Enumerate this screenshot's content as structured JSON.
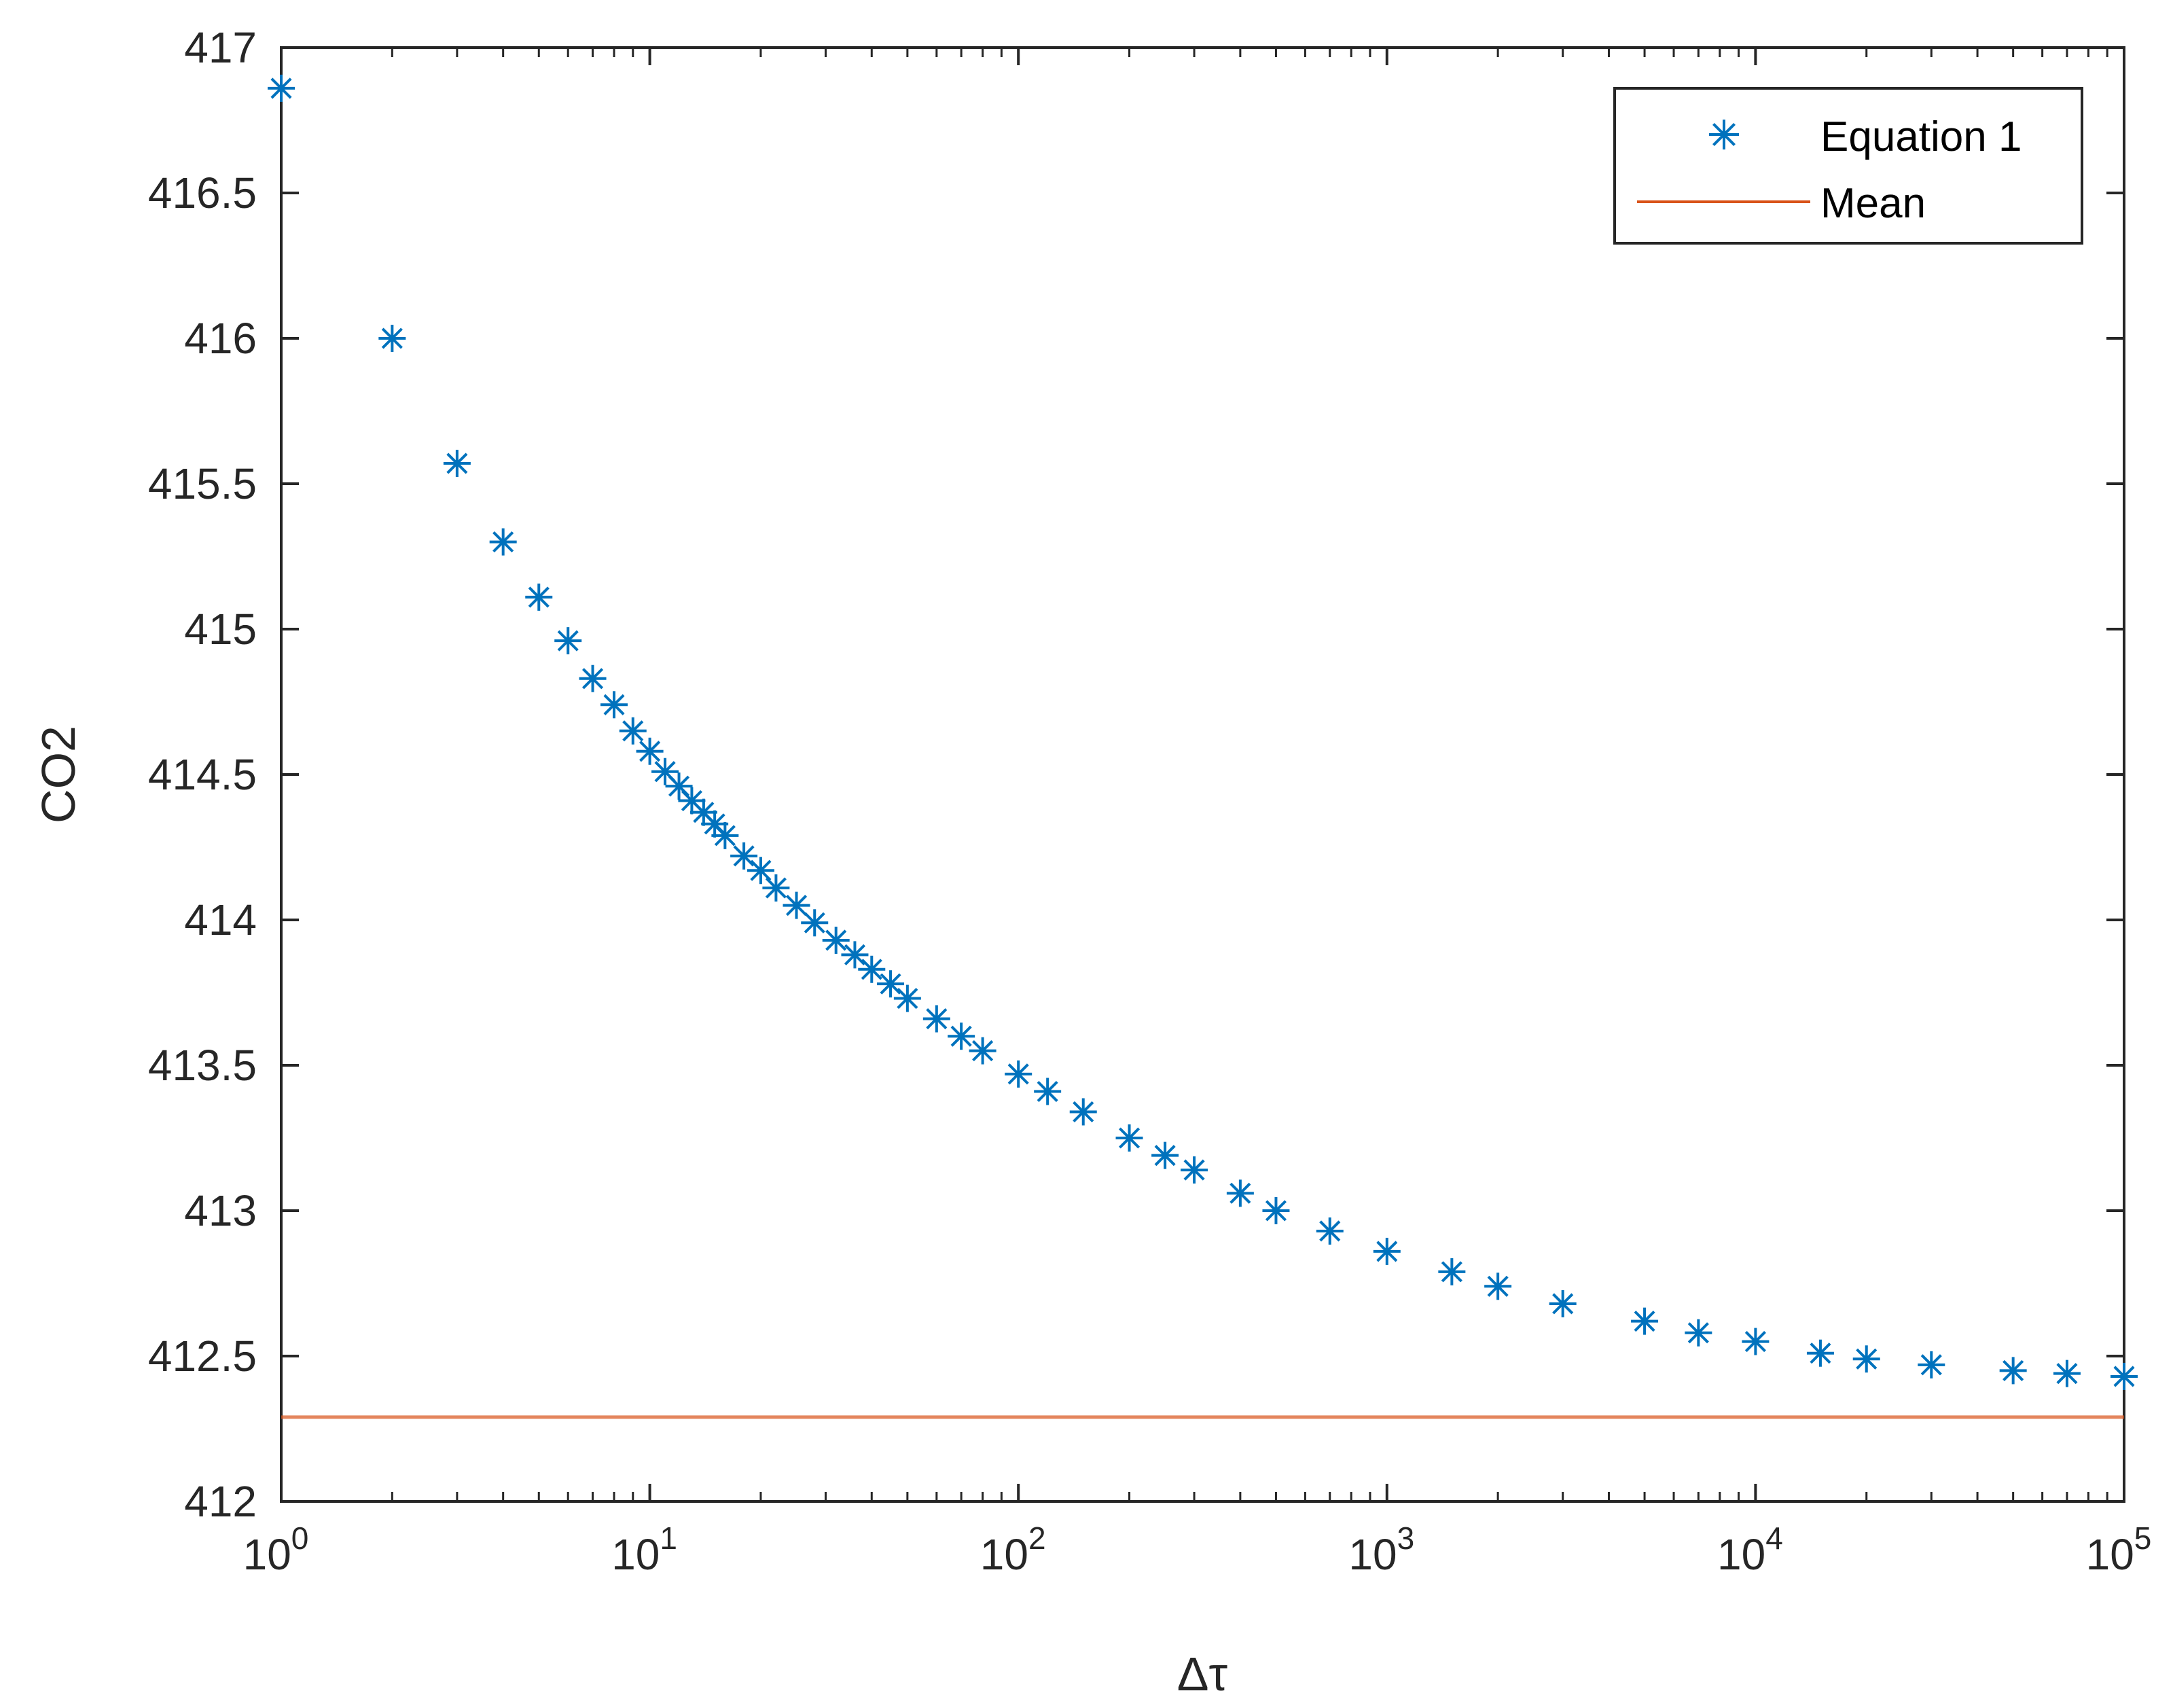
{
  "chart_data": {
    "type": "scatter",
    "title": "",
    "xlabel": "Δτ",
    "ylabel": "CO2",
    "xscale": "log",
    "xlim": [
      1,
      100000
    ],
    "ylim": [
      412,
      417
    ],
    "xticks": [
      {
        "value": 1,
        "base": "10",
        "exp": "0"
      },
      {
        "value": 10,
        "base": "10",
        "exp": "1"
      },
      {
        "value": 100,
        "base": "10",
        "exp": "2"
      },
      {
        "value": 1000,
        "base": "10",
        "exp": "3"
      },
      {
        "value": 10000,
        "base": "10",
        "exp": "4"
      },
      {
        "value": 100000,
        "base": "10",
        "exp": "5"
      }
    ],
    "yticks": [
      {
        "value": 412,
        "label": "412"
      },
      {
        "value": 412.5,
        "label": "412.5"
      },
      {
        "value": 413,
        "label": "413"
      },
      {
        "value": 413.5,
        "label": "413.5"
      },
      {
        "value": 414,
        "label": "414"
      },
      {
        "value": 414.5,
        "label": "414.5"
      },
      {
        "value": 415,
        "label": "415"
      },
      {
        "value": 415.5,
        "label": "415.5"
      },
      {
        "value": 416,
        "label": "416"
      },
      {
        "value": 416.5,
        "label": "416.5"
      },
      {
        "value": 417,
        "label": "417"
      }
    ],
    "grid": false,
    "legend_position": "top-right",
    "series": [
      {
        "name": "Equation 1",
        "kind": "markers",
        "marker": "asterisk",
        "color": "#0072BD",
        "x": [
          1,
          2,
          3,
          4,
          5,
          6,
          7,
          8,
          9,
          10,
          11,
          12,
          13,
          14,
          15,
          16,
          18,
          20,
          22,
          25,
          28,
          32,
          36,
          40,
          45,
          50,
          60,
          70,
          80,
          100,
          120,
          150,
          200,
          250,
          300,
          400,
          500,
          700,
          1000,
          1500,
          2000,
          3000,
          5000,
          7000,
          10000,
          15000,
          20000,
          30000,
          50000,
          70000,
          100000
        ],
        "y": [
          416.86,
          416.0,
          415.57,
          415.3,
          415.11,
          414.96,
          414.83,
          414.74,
          414.65,
          414.58,
          414.51,
          414.46,
          414.41,
          414.37,
          414.33,
          414.29,
          414.22,
          414.17,
          414.11,
          414.05,
          413.99,
          413.93,
          413.88,
          413.83,
          413.78,
          413.73,
          413.66,
          413.6,
          413.55,
          413.47,
          413.41,
          413.34,
          413.25,
          413.19,
          413.14,
          413.06,
          413.0,
          412.93,
          412.86,
          412.79,
          412.74,
          412.68,
          412.62,
          412.58,
          412.55,
          412.51,
          412.49,
          412.47,
          412.45,
          412.44,
          412.43
        ]
      },
      {
        "name": "Mean",
        "kind": "line",
        "color": "#D95319",
        "y": 412.29
      }
    ]
  }
}
